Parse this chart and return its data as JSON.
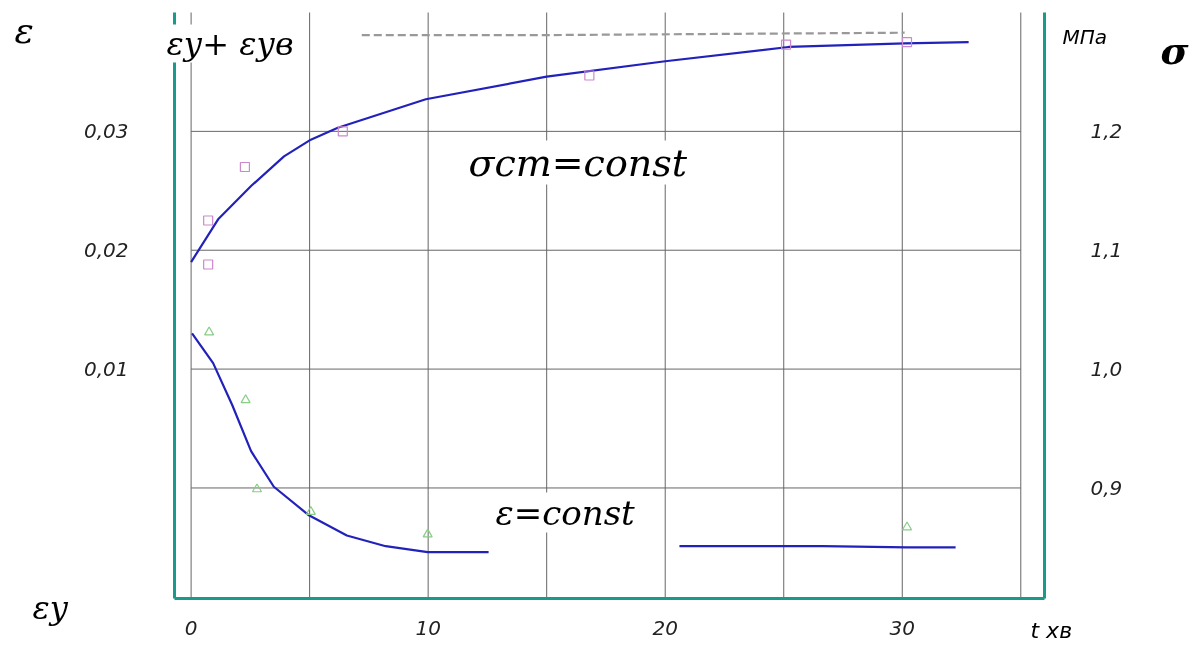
{
  "chart_data": {
    "type": "line",
    "ylabel": "ε",
    "y2label": "σ",
    "xlabel": "t хв",
    "annotations": [
      "εу+ εув",
      "εу",
      "МПа",
      "σст=const",
      "ε=const"
    ],
    "xlim": [
      -0.7,
      36
    ],
    "ylim": [
      -0.0093,
      0.04
    ],
    "y2lim": [
      0.807,
      1.3
    ],
    "xticks": [
      0,
      {
        "value": 5,
        "label": null
      },
      10,
      {
        "value": 15,
        "label": null
      },
      20,
      {
        "value": 25,
        "label": null
      },
      30,
      {
        "value": 35,
        "label": null
      }
    ],
    "yticks": [
      {
        "value": 0.01,
        "label": "0,01"
      },
      {
        "value": 0.02,
        "label": "0,02"
      },
      {
        "value": 0.03,
        "label": "0,03"
      }
    ],
    "y2ticks": [
      {
        "value": 0.9,
        "label": "0,9"
      },
      {
        "value": 1.0,
        "label": "1,0"
      },
      {
        "value": 1.1,
        "label": "1,1"
      },
      {
        "value": 1.2,
        "label": "1,2"
      }
    ],
    "grid": true,
    "series": [
      {
        "color": "#999999",
        "line_style": "dashed",
        "marker": "none",
        "x": [
          7.2,
          15,
          30.1
        ],
        "values": [
          0.0381,
          0.0381,
          0.0383
        ]
      },
      {
        "color": "#2222bb",
        "marker": "none",
        "x": [
          0,
          1.14,
          2.53,
          3.92,
          5.05,
          6.19,
          9.9,
          15.0,
          20.0,
          25.2,
          30.1,
          32.8
        ],
        "values": [
          0.019,
          0.0226,
          0.0254,
          0.0279,
          0.0293,
          0.0303,
          0.0327,
          0.0346,
          0.0359,
          0.0371,
          0.0374,
          0.0375
        ]
      },
      {
        "type": "scatter",
        "color": "#cc88cc",
        "marker": "square",
        "x": [
          0.72,
          0.72,
          2.27,
          6.4,
          16.8,
          25.1,
          30.2
        ],
        "values": [
          0.0188,
          0.0225,
          0.027,
          0.03,
          0.0347,
          0.0373,
          0.0375
        ]
      },
      {
        "color": "#2222bb",
        "marker": "none",
        "axis": "y2",
        "x": [
          0.04,
          0.93,
          1.73,
          2.53,
          3.49,
          4.97,
          6.57,
          8.21,
          9.98,
          12.55,
          16,
          20.6,
          26.65,
          30.2,
          32.25
        ],
        "values": [
          1.03,
          1.005,
          0.97,
          0.931,
          0.901,
          0.877,
          0.86,
          0.851,
          0.846,
          0.846,
          null,
          0.851,
          0.851,
          0.85,
          0.85
        ]
      },
      {
        "type": "scatter",
        "color": "#88cc88",
        "marker": "triangle",
        "axis": "y2",
        "x": [
          0.76,
          2.3,
          2.78,
          5.05,
          9.98,
          30.2
        ],
        "values": [
          1.031,
          0.974,
          0.899,
          0.88,
          0.861,
          0.867
        ]
      }
    ]
  }
}
